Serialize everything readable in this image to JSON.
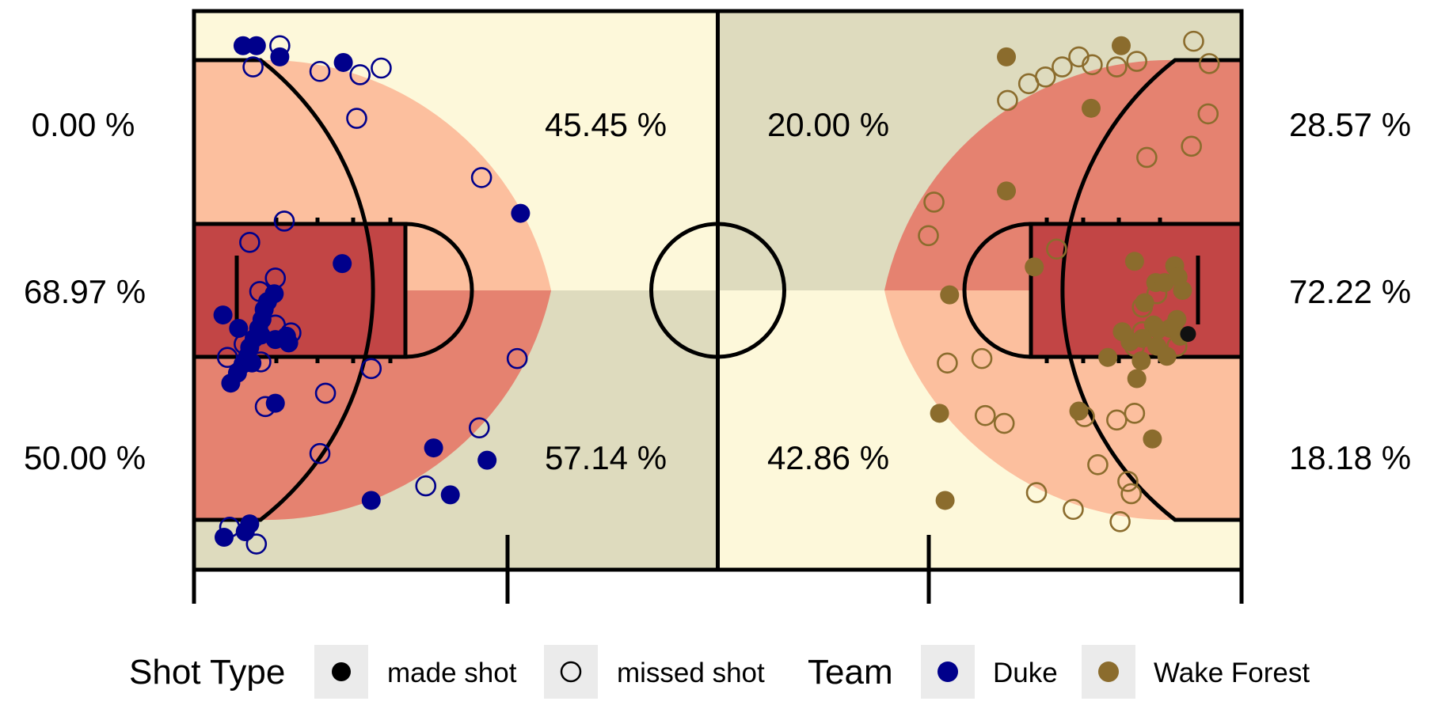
{
  "chart_data": {
    "type": "scatter",
    "title": "",
    "xlabel": "",
    "ylabel": "",
    "court": {
      "length": 94,
      "width": 50,
      "xlim": [
        0,
        94
      ],
      "ylim": [
        0,
        50
      ],
      "zone_colors": {
        "backcourt": "#fdf8da",
        "backcourt_dark": "#dedbbe",
        "three": "#fcbf9e",
        "mid": "#e58270",
        "paint": "#c24545",
        "lines": "#000000"
      }
    },
    "zone_percentages": [
      {
        "team": "Duke",
        "zone": "left corner three",
        "label": "0.00 %",
        "value": 0.0
      },
      {
        "team": "Duke",
        "zone": "mid-range / paint",
        "label": "68.97 %",
        "value": 68.97
      },
      {
        "team": "Duke",
        "zone": "right corner three",
        "label": "50.00 %",
        "value": 50.0
      },
      {
        "team": "Duke",
        "zone": "top three",
        "label": "45.45 %",
        "value": 45.45
      },
      {
        "team": "Duke",
        "zone": "bottom three",
        "label": "57.14 %",
        "value": 57.14
      },
      {
        "team": "Wake Forest",
        "zone": "top three",
        "label": "20.00 %",
        "value": 20.0
      },
      {
        "team": "Wake Forest",
        "zone": "bottom three",
        "label": "42.86 %",
        "value": 42.86
      },
      {
        "team": "Wake Forest",
        "zone": "right corner three",
        "label": "28.57 %",
        "value": 28.57
      },
      {
        "team": "Wake Forest",
        "zone": "mid-range / paint",
        "label": "72.22 %",
        "value": 72.22
      },
      {
        "team": "Wake Forest",
        "zone": "left corner three",
        "label": "18.18 %",
        "value": 18.18
      }
    ],
    "series": [
      {
        "name": "Duke",
        "color": "#00008b",
        "made": [
          [
            4.4,
            46.9
          ],
          [
            5.6,
            46.9
          ],
          [
            7.7,
            45.9
          ],
          [
            13.4,
            45.4
          ],
          [
            29.3,
            31.9
          ],
          [
            13.3,
            27.4
          ],
          [
            7.2,
            24.7
          ],
          [
            6.6,
            24.0
          ],
          [
            6.3,
            23.3
          ],
          [
            6.1,
            22.4
          ],
          [
            5.8,
            21.6
          ],
          [
            5.4,
            20.7
          ],
          [
            5.0,
            19.9
          ],
          [
            4.8,
            19.1
          ],
          [
            4.4,
            18.4
          ],
          [
            3.9,
            17.6
          ],
          [
            3.3,
            16.7
          ],
          [
            2.6,
            22.8
          ],
          [
            7.3,
            20.6
          ],
          [
            8.3,
            20.9
          ],
          [
            8.5,
            20.3
          ],
          [
            6.0,
            21.0
          ],
          [
            5.2,
            18.5
          ],
          [
            4.0,
            21.6
          ],
          [
            7.3,
            14.9
          ],
          [
            21.5,
            10.9
          ],
          [
            26.3,
            9.8
          ],
          [
            23.0,
            6.7
          ],
          [
            15.9,
            6.2
          ],
          [
            5.0,
            4.1
          ],
          [
            4.6,
            3.4
          ],
          [
            2.7,
            2.9
          ]
        ],
        "missed": [
          [
            7.7,
            46.9
          ],
          [
            5.3,
            45.0
          ],
          [
            11.3,
            44.6
          ],
          [
            14.9,
            44.3
          ],
          [
            16.8,
            44.9
          ],
          [
            14.6,
            40.4
          ],
          [
            25.8,
            35.1
          ],
          [
            8.1,
            31.2
          ],
          [
            5.0,
            29.3
          ],
          [
            7.3,
            26.1
          ],
          [
            5.9,
            24.9
          ],
          [
            7.3,
            21.9
          ],
          [
            8.7,
            21.2
          ],
          [
            4.5,
            20.2
          ],
          [
            3.0,
            19.0
          ],
          [
            6.0,
            18.6
          ],
          [
            15.9,
            18.0
          ],
          [
            11.8,
            15.8
          ],
          [
            29.0,
            18.9
          ],
          [
            6.4,
            14.6
          ],
          [
            25.6,
            12.7
          ],
          [
            11.3,
            10.4
          ],
          [
            20.8,
            7.5
          ],
          [
            3.2,
            3.8
          ],
          [
            5.6,
            2.3
          ]
        ]
      },
      {
        "name": "Wake Forest",
        "color": "#8b6c2d",
        "made": [
          [
            72.9,
            45.9
          ],
          [
            83.2,
            46.9
          ],
          [
            80.5,
            41.3
          ],
          [
            72.9,
            33.9
          ],
          [
            75.4,
            27.1
          ],
          [
            67.8,
            24.6
          ],
          [
            84.4,
            27.6
          ],
          [
            86.3,
            25.7
          ],
          [
            87.1,
            25.7
          ],
          [
            88.0,
            27.2
          ],
          [
            88.3,
            26.2
          ],
          [
            88.7,
            25.0
          ],
          [
            85.3,
            23.9
          ],
          [
            86.1,
            21.9
          ],
          [
            84.0,
            20.4
          ],
          [
            88.2,
            22.4
          ],
          [
            87.6,
            21.6
          ],
          [
            86.4,
            20.0
          ],
          [
            85.1,
            20.7
          ],
          [
            83.3,
            21.3
          ],
          [
            87.3,
            19.1
          ],
          [
            85.0,
            18.7
          ],
          [
            84.6,
            17.1
          ],
          [
            82.0,
            19.0
          ],
          [
            66.9,
            14.0
          ],
          [
            79.4,
            14.2
          ],
          [
            86.0,
            11.7
          ],
          [
            67.4,
            6.2
          ],
          [
            88.5,
            20.9
          ],
          [
            86.5,
            21.5
          ]
        ],
        "missed": [
          [
            89.7,
            47.3
          ],
          [
            84.6,
            45.5
          ],
          [
            82.8,
            45.0
          ],
          [
            80.6,
            45.2
          ],
          [
            79.4,
            45.9
          ],
          [
            91.1,
            45.3
          ],
          [
            77.9,
            45.0
          ],
          [
            76.4,
            44.1
          ],
          [
            74.9,
            43.5
          ],
          [
            73.0,
            42.0
          ],
          [
            91.0,
            40.8
          ],
          [
            89.5,
            37.9
          ],
          [
            85.5,
            36.9
          ],
          [
            66.4,
            32.9
          ],
          [
            77.4,
            28.7
          ],
          [
            65.9,
            29.9
          ],
          [
            70.7,
            18.9
          ],
          [
            67.6,
            18.5
          ],
          [
            84.4,
            20.0
          ],
          [
            85.1,
            21.3
          ],
          [
            88.2,
            20.0
          ],
          [
            85.1,
            23.5
          ],
          [
            86.4,
            24.7
          ],
          [
            71.0,
            13.8
          ],
          [
            79.9,
            13.7
          ],
          [
            72.7,
            13.1
          ],
          [
            84.4,
            14.0
          ],
          [
            81.1,
            9.4
          ],
          [
            83.8,
            7.9
          ],
          [
            84.1,
            6.8
          ],
          [
            75.6,
            6.9
          ],
          [
            78.9,
            5.4
          ],
          [
            83.1,
            4.3
          ],
          [
            82.8,
            13.4
          ]
        ]
      }
    ],
    "legend": {
      "placement": "bottom",
      "shot_type_title": "Shot Type",
      "made_label": "made shot",
      "missed_label": "missed shot",
      "team_title": "Team",
      "teams": [
        {
          "label": "Duke",
          "color": "#00008b"
        },
        {
          "label": "Wake Forest",
          "color": "#8b6c2d"
        }
      ]
    }
  }
}
